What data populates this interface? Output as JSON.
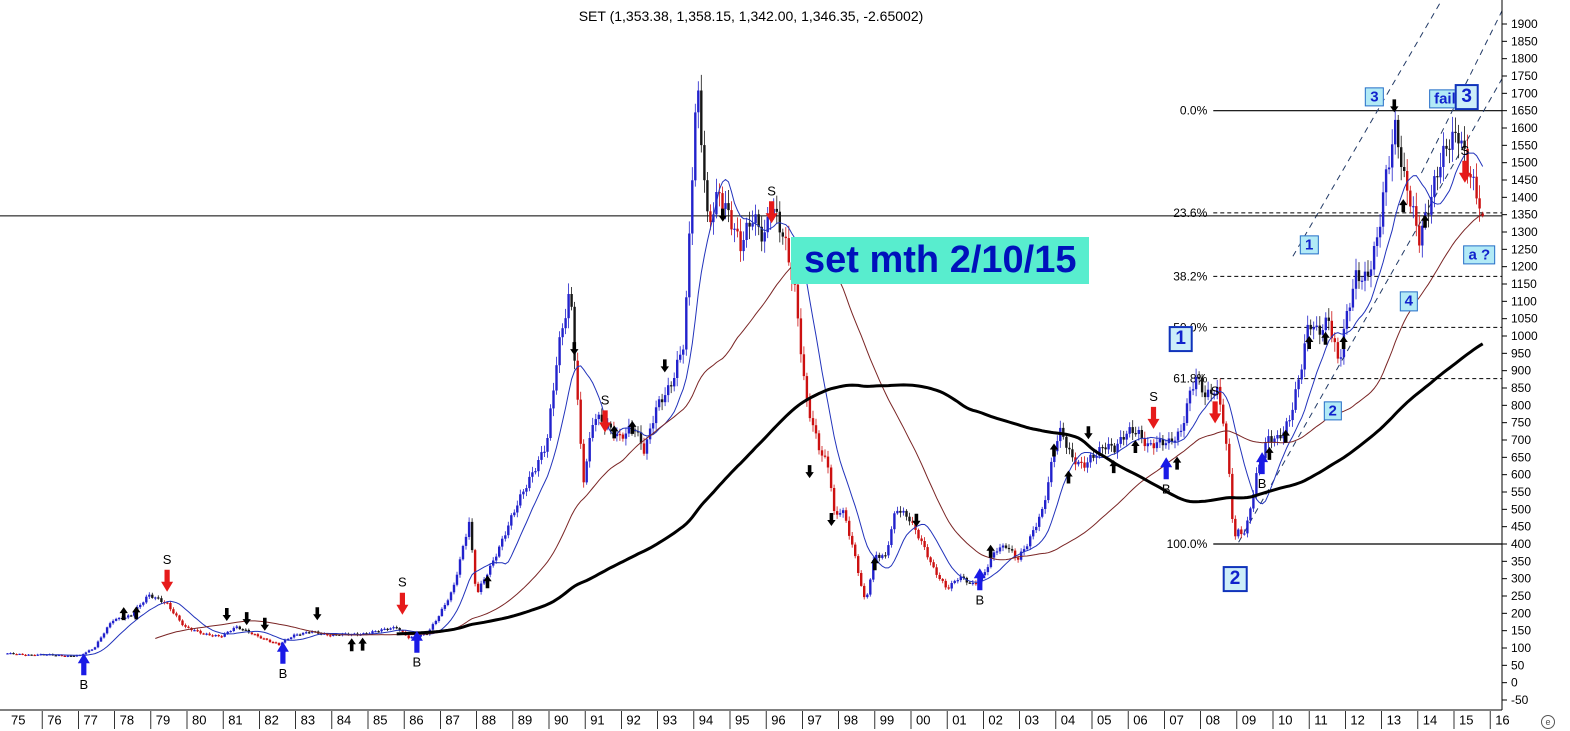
{
  "title": "SET (1,353.38, 1,358.15, 1,342.00, 1,346.35, -2.65002)",
  "overlay_label": "set mth 2/10/15",
  "watermark": "e",
  "colors": {
    "up_candle": "#2222cc",
    "down_candle": "#cc1111",
    "neutral_candle": "#151515",
    "ma_fast": "#2233bb",
    "ma_medium": "#7a2525",
    "ma_slow": "#000000",
    "buy_arrow": "#1a1ae6",
    "sell_arrow": "#e61a1a",
    "minor_arrow": "#000000",
    "note_bg": "#58edce",
    "note_text": "#0011bb",
    "label_small_bg": "#b2eaf6",
    "label_small_border": "#2a6fc8",
    "label_large_bg": "#cdeef9",
    "label_large_border": "#1133bb",
    "label_text": "#1122cc",
    "channel": "#223a66",
    "axis": "#000000"
  },
  "chart_data": {
    "type": "candlestick",
    "symbol": "SET",
    "timeframe": "monthly",
    "x_tick_labels": [
      "75",
      "76",
      "77",
      "78",
      "79",
      "80",
      "81",
      "82",
      "83",
      "84",
      "85",
      "86",
      "87",
      "88",
      "89",
      "90",
      "91",
      "92",
      "93",
      "94",
      "95",
      "96",
      "97",
      "98",
      "99",
      "00",
      "01",
      "02",
      "03",
      "04",
      "05",
      "06",
      "07",
      "08",
      "09",
      "10",
      "11",
      "12",
      "13",
      "14",
      "15",
      "16"
    ],
    "y_min": -50,
    "y_max": 1900,
    "y_step": 50,
    "y_tick_labels": [
      "1900",
      "1850",
      "1800",
      "1750",
      "1700",
      "1650",
      "1600",
      "1550",
      "1500",
      "1450",
      "1400",
      "1350",
      "1300",
      "1250",
      "1200",
      "1150",
      "1100",
      "1050",
      "1000",
      "950",
      "900",
      "850",
      "800",
      "750",
      "700",
      "650",
      "600",
      "550",
      "500",
      "450",
      "400",
      "350",
      "300",
      "250",
      "200",
      "150",
      "100",
      "50",
      "0",
      "-50"
    ],
    "last_quote": {
      "open": 1353.38,
      "high": 1358.15,
      "low": 1342.0,
      "close": 1346.35,
      "change": -2.65002
    },
    "series_end_year": 2015.75,
    "price_level_line": 1346.35,
    "price_anchors_monthly_close": [
      [
        1975.0,
        84
      ],
      [
        1975.5,
        80
      ],
      [
        1976.0,
        82
      ],
      [
        1976.6,
        76
      ],
      [
        1977.0,
        80
      ],
      [
        1977.4,
        100
      ],
      [
        1977.9,
        180
      ],
      [
        1978.4,
        195
      ],
      [
        1978.9,
        250
      ],
      [
        1979.4,
        230
      ],
      [
        1979.9,
        160
      ],
      [
        1980.4,
        140
      ],
      [
        1980.9,
        135
      ],
      [
        1981.3,
        160
      ],
      [
        1981.9,
        135
      ],
      [
        1982.5,
        110
      ],
      [
        1982.9,
        135
      ],
      [
        1983.4,
        150
      ],
      [
        1983.9,
        135
      ],
      [
        1984.4,
        140
      ],
      [
        1984.9,
        142
      ],
      [
        1985.4,
        152
      ],
      [
        1985.75,
        160
      ],
      [
        1986.1,
        130
      ],
      [
        1986.6,
        140
      ],
      [
        1986.9,
        190
      ],
      [
        1987.3,
        270
      ],
      [
        1987.75,
        460
      ],
      [
        1987.95,
        250
      ],
      [
        1988.4,
        350
      ],
      [
        1988.9,
        470
      ],
      [
        1989.4,
        580
      ],
      [
        1989.9,
        700
      ],
      [
        1990.2,
        950
      ],
      [
        1990.55,
        1120
      ],
      [
        1990.9,
        580
      ],
      [
        1991.2,
        780
      ],
      [
        1991.6,
        730
      ],
      [
        1991.9,
        700
      ],
      [
        1992.3,
        750
      ],
      [
        1992.6,
        670
      ],
      [
        1992.9,
        780
      ],
      [
        1993.3,
        850
      ],
      [
        1993.7,
        1000
      ],
      [
        1993.95,
        1550
      ],
      [
        1994.05,
        1720
      ],
      [
        1994.35,
        1300
      ],
      [
        1994.65,
        1420
      ],
      [
        1994.95,
        1360
      ],
      [
        1995.25,
        1260
      ],
      [
        1995.6,
        1330
      ],
      [
        1995.9,
        1280
      ],
      [
        1996.1,
        1400
      ],
      [
        1996.45,
        1290
      ],
      [
        1996.75,
        1120
      ],
      [
        1997.05,
        820
      ],
      [
        1997.4,
        690
      ],
      [
        1997.7,
        620
      ],
      [
        1997.85,
        470
      ],
      [
        1998.05,
        500
      ],
      [
        1998.35,
        390
      ],
      [
        1998.7,
        230
      ],
      [
        1998.95,
        370
      ],
      [
        1999.25,
        360
      ],
      [
        1999.55,
        500
      ],
      [
        1999.9,
        480
      ],
      [
        2000.2,
        420
      ],
      [
        2000.6,
        320
      ],
      [
        2000.95,
        270
      ],
      [
        2001.3,
        310
      ],
      [
        2001.7,
        280
      ],
      [
        2001.95,
        305
      ],
      [
        2002.3,
        385
      ],
      [
        2002.6,
        400
      ],
      [
        2002.9,
        355
      ],
      [
        2003.2,
        400
      ],
      [
        2003.6,
        500
      ],
      [
        2003.95,
        700
      ],
      [
        2004.1,
        730
      ],
      [
        2004.4,
        640
      ],
      [
        2004.7,
        620
      ],
      [
        2004.95,
        655
      ],
      [
        2005.3,
        690
      ],
      [
        2005.6,
        670
      ],
      [
        2005.95,
        720
      ],
      [
        2006.2,
        730
      ],
      [
        2006.5,
        690
      ],
      [
        2006.8,
        690
      ],
      [
        2007.1,
        685
      ],
      [
        2007.4,
        720
      ],
      [
        2007.7,
        860
      ],
      [
        2007.85,
        890
      ],
      [
        2008.1,
        820
      ],
      [
        2008.4,
        840
      ],
      [
        2008.6,
        750
      ],
      [
        2008.75,
        600
      ],
      [
        2008.88,
        420
      ],
      [
        2009.0,
        440
      ],
      [
        2009.2,
        435
      ],
      [
        2009.5,
        590
      ],
      [
        2009.8,
        700
      ],
      [
        2010.1,
        710
      ],
      [
        2010.4,
        760
      ],
      [
        2010.7,
        880
      ],
      [
        2010.95,
        1030
      ],
      [
        2011.2,
        1010
      ],
      [
        2011.5,
        1060
      ],
      [
        2011.78,
        920
      ],
      [
        2011.95,
        1030
      ],
      [
        2012.25,
        1160
      ],
      [
        2012.55,
        1170
      ],
      [
        2012.85,
        1300
      ],
      [
        2013.05,
        1450
      ],
      [
        2013.35,
        1590
      ],
      [
        2013.55,
        1450
      ],
      [
        2013.8,
        1380
      ],
      [
        2013.98,
        1290
      ],
      [
        2014.25,
        1380
      ],
      [
        2014.55,
        1480
      ],
      [
        2014.85,
        1550
      ],
      [
        2015.1,
        1590
      ],
      [
        2015.35,
        1500
      ],
      [
        2015.55,
        1430
      ],
      [
        2015.75,
        1346.35
      ]
    ],
    "moving_averages": [
      {
        "name": "fast",
        "period": 12,
        "color": "#2233bb",
        "width": 1
      },
      {
        "name": "medium",
        "period": 50,
        "color": "#7a2525",
        "width": 1
      },
      {
        "name": "slow",
        "period": 130,
        "color": "#000000",
        "width": 3
      }
    ],
    "fibonacci": {
      "x_start_year": 2008.35,
      "levels": [
        {
          "label": "0.0%",
          "value": 1650,
          "style": "solid"
        },
        {
          "label": "23.6%",
          "value": 1355,
          "style": "dashed"
        },
        {
          "label": "38.2%",
          "value": 1172,
          "style": "dashed"
        },
        {
          "label": "50.0%",
          "value": 1025,
          "style": "dashed"
        },
        {
          "label": "61.8%",
          "value": 877,
          "style": "dashed"
        },
        {
          "label": "100.0%",
          "value": 400,
          "style": "solid"
        }
      ]
    },
    "trend_channels": [
      {
        "x1": 2010.55,
        "v1": 1230,
        "x2": 2014.75,
        "v2": 1985
      },
      {
        "x1": 2009.05,
        "v1": 405,
        "x2": 2016.75,
        "v2": 1820
      },
      {
        "x1": 2014.1,
        "v1": 1470,
        "x2": 2016.55,
        "v2": 1985
      }
    ],
    "signals": [
      {
        "side": "buy",
        "label": "B",
        "year": 1977.15,
        "value": 85
      },
      {
        "side": "buy",
        "label": "B",
        "year": 1982.65,
        "value": 118
      },
      {
        "side": "buy",
        "label": "B",
        "year": 1986.35,
        "value": 150
      },
      {
        "side": "buy",
        "label": "B",
        "year": 2001.9,
        "value": 330
      },
      {
        "side": "buy",
        "label": "B",
        "year": 2007.05,
        "value": 650
      },
      {
        "side": "buy",
        "label": "B",
        "year": 2009.7,
        "value": 665
      },
      {
        "side": "sell",
        "label": "S",
        "year": 1979.45,
        "value": 262
      },
      {
        "side": "sell",
        "label": "S",
        "year": 1985.95,
        "value": 196
      },
      {
        "side": "sell",
        "label": "S",
        "year": 1991.55,
        "value": 722
      },
      {
        "side": "sell",
        "label": "S",
        "year": 1996.15,
        "value": 1325
      },
      {
        "side": "sell",
        "label": "S",
        "year": 2006.7,
        "value": 732
      },
      {
        "side": "sell",
        "label": "S",
        "year": 2008.4,
        "value": 748
      },
      {
        "side": "sell",
        "label": "S",
        "year": 2015.3,
        "value": 1442
      }
    ],
    "minor_arrows": [
      {
        "dir": "up",
        "year": 1978.25,
        "value": 218
      },
      {
        "dir": "up",
        "year": 1978.6,
        "value": 220
      },
      {
        "dir": "down",
        "year": 1981.1,
        "value": 178
      },
      {
        "dir": "down",
        "year": 1981.65,
        "value": 166
      },
      {
        "dir": "down",
        "year": 1982.15,
        "value": 150
      },
      {
        "dir": "down",
        "year": 1983.6,
        "value": 180
      },
      {
        "dir": "up",
        "year": 1984.55,
        "value": 128
      },
      {
        "dir": "up",
        "year": 1984.85,
        "value": 130
      },
      {
        "dir": "up",
        "year": 1988.3,
        "value": 310
      },
      {
        "dir": "down",
        "year": 1990.7,
        "value": 945
      },
      {
        "dir": "up",
        "year": 1991.8,
        "value": 742
      },
      {
        "dir": "up",
        "year": 1992.3,
        "value": 755
      },
      {
        "dir": "down",
        "year": 1993.2,
        "value": 895
      },
      {
        "dir": "down",
        "year": 1994.8,
        "value": 1330
      },
      {
        "dir": "down",
        "year": 1997.2,
        "value": 590
      },
      {
        "dir": "down",
        "year": 1997.8,
        "value": 452
      },
      {
        "dir": "up",
        "year": 1999.0,
        "value": 362
      },
      {
        "dir": "down",
        "year": 2000.15,
        "value": 450
      },
      {
        "dir": "up",
        "year": 2002.2,
        "value": 398
      },
      {
        "dir": "up",
        "year": 2003.95,
        "value": 690
      },
      {
        "dir": "up",
        "year": 2004.35,
        "value": 612
      },
      {
        "dir": "down",
        "year": 2004.9,
        "value": 702
      },
      {
        "dir": "up",
        "year": 2005.6,
        "value": 642
      },
      {
        "dir": "up",
        "year": 2006.2,
        "value": 700
      },
      {
        "dir": "up",
        "year": 2007.35,
        "value": 652
      },
      {
        "dir": "up",
        "year": 2009.9,
        "value": 680
      },
      {
        "dir": "up",
        "year": 2010.35,
        "value": 730
      },
      {
        "dir": "up",
        "year": 2011.0,
        "value": 1000
      },
      {
        "dir": "up",
        "year": 2011.45,
        "value": 1012
      },
      {
        "dir": "up",
        "year": 2011.95,
        "value": 1000
      },
      {
        "dir": "down",
        "year": 2013.35,
        "value": 1645
      },
      {
        "dir": "up",
        "year": 2013.6,
        "value": 1395
      },
      {
        "dir": "up",
        "year": 2014.2,
        "value": 1350
      }
    ],
    "wave_labels": [
      {
        "text": "1",
        "year": 2011.0,
        "value": 1262,
        "size": "small"
      },
      {
        "text": "2",
        "year": 2011.65,
        "value": 783,
        "size": "small"
      },
      {
        "text": "3",
        "year": 2012.8,
        "value": 1690,
        "size": "small"
      },
      {
        "text": "4",
        "year": 2013.75,
        "value": 1100,
        "size": "small"
      },
      {
        "text": "fail",
        "year": 2014.75,
        "value": 1685,
        "size": "small"
      },
      {
        "text": "a ?",
        "year": 2015.7,
        "value": 1235,
        "size": "small"
      },
      {
        "text": "3",
        "year": 2015.35,
        "value": 1690,
        "size": "large"
      },
      {
        "text": "1",
        "year": 2007.45,
        "value": 990,
        "size": "large"
      },
      {
        "text": "2",
        "year": 2008.95,
        "value": 300,
        "size": "large"
      }
    ]
  }
}
